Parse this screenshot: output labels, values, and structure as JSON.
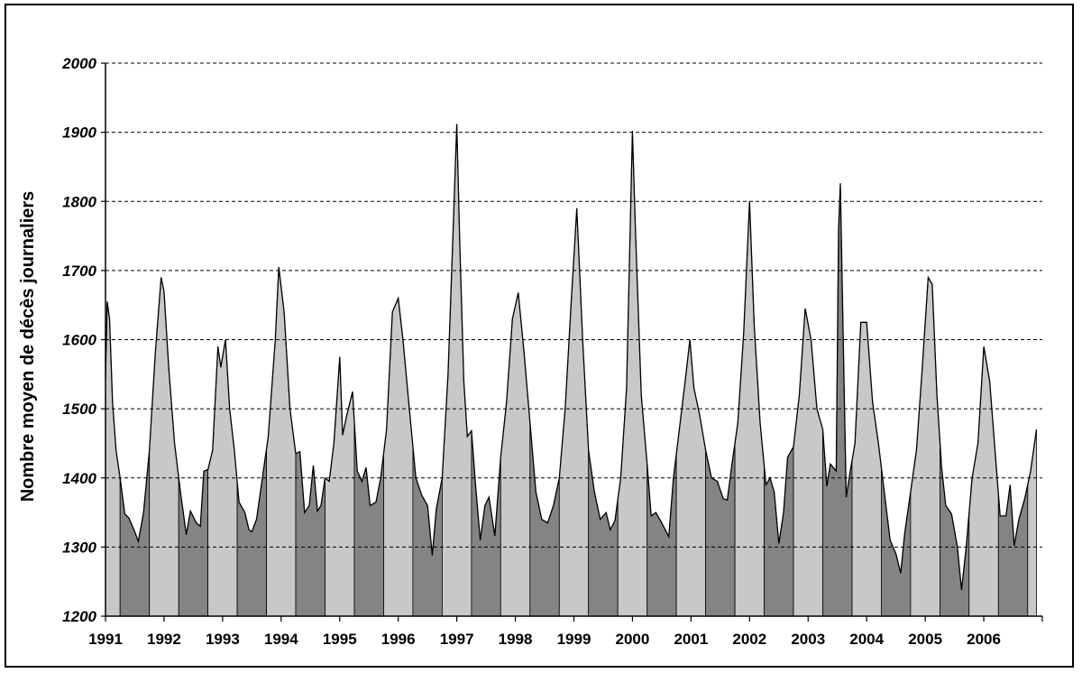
{
  "chart_data": {
    "type": "area",
    "title": "",
    "xlabel": "",
    "ylabel": "Nombre moyen de décès journaliers",
    "ylim": [
      1200,
      2000
    ],
    "yticks": [
      "2000",
      "1900",
      "1800",
      "1700",
      "1600",
      "1500",
      "1400",
      "1300",
      "1200"
    ],
    "grid": "horizontal dashed",
    "x_start_year": 1991,
    "x_end_year": 2007,
    "xticks": [
      "1991",
      "1992",
      "1993",
      "1994",
      "1995",
      "1996",
      "1997",
      "1998",
      "1999",
      "2000",
      "2001",
      "2002",
      "2003",
      "2004",
      "2005",
      "2006"
    ],
    "shading": {
      "winter_color": "#c8c8c8",
      "summer_color": "#848484",
      "line_color": "#000000"
    },
    "series": [
      {
        "points": [
          [
            1991.0,
            1545
          ],
          [
            1991.03,
            1655
          ],
          [
            1991.07,
            1630
          ],
          [
            1991.12,
            1510
          ],
          [
            1991.18,
            1440
          ],
          [
            1991.25,
            1400
          ],
          [
            1991.33,
            1348
          ],
          [
            1991.4,
            1342
          ],
          [
            1991.5,
            1322
          ],
          [
            1991.56,
            1308
          ],
          [
            1991.65,
            1350
          ],
          [
            1991.75,
            1440
          ],
          [
            1991.85,
            1580
          ],
          [
            1991.95,
            1690
          ],
          [
            1992.0,
            1670
          ],
          [
            1992.08,
            1560
          ],
          [
            1992.18,
            1450
          ],
          [
            1992.28,
            1380
          ],
          [
            1992.38,
            1318
          ],
          [
            1992.45,
            1352
          ],
          [
            1992.55,
            1335
          ],
          [
            1992.62,
            1330
          ],
          [
            1992.68,
            1410
          ],
          [
            1992.75,
            1412
          ],
          [
            1992.83,
            1440
          ],
          [
            1992.92,
            1590
          ],
          [
            1992.97,
            1560
          ],
          [
            1993.05,
            1600
          ],
          [
            1993.12,
            1500
          ],
          [
            1993.2,
            1440
          ],
          [
            1993.28,
            1365
          ],
          [
            1993.38,
            1350
          ],
          [
            1993.45,
            1325
          ],
          [
            1993.5,
            1322
          ],
          [
            1993.58,
            1340
          ],
          [
            1993.68,
            1400
          ],
          [
            1993.78,
            1460
          ],
          [
            1993.9,
            1600
          ],
          [
            1993.96,
            1705
          ],
          [
            1994.05,
            1640
          ],
          [
            1994.15,
            1500
          ],
          [
            1994.25,
            1435
          ],
          [
            1994.32,
            1438
          ],
          [
            1994.4,
            1350
          ],
          [
            1994.48,
            1360
          ],
          [
            1994.55,
            1418
          ],
          [
            1994.62,
            1352
          ],
          [
            1994.68,
            1360
          ],
          [
            1994.75,
            1400
          ],
          [
            1994.82,
            1395
          ],
          [
            1994.9,
            1450
          ],
          [
            1995.0,
            1575
          ],
          [
            1995.05,
            1462
          ],
          [
            1995.12,
            1490
          ],
          [
            1995.22,
            1525
          ],
          [
            1995.3,
            1410
          ],
          [
            1995.38,
            1395
          ],
          [
            1995.45,
            1415
          ],
          [
            1995.52,
            1360
          ],
          [
            1995.62,
            1365
          ],
          [
            1995.7,
            1400
          ],
          [
            1995.8,
            1470
          ],
          [
            1995.9,
            1640
          ],
          [
            1996.0,
            1660
          ],
          [
            1996.08,
            1600
          ],
          [
            1996.2,
            1490
          ],
          [
            1996.3,
            1400
          ],
          [
            1996.4,
            1375
          ],
          [
            1996.5,
            1360
          ],
          [
            1996.58,
            1288
          ],
          [
            1996.65,
            1355
          ],
          [
            1996.75,
            1400
          ],
          [
            1996.85,
            1550
          ],
          [
            1996.95,
            1790
          ],
          [
            1997.0,
            1912
          ],
          [
            1997.05,
            1740
          ],
          [
            1997.12,
            1540
          ],
          [
            1997.18,
            1460
          ],
          [
            1997.25,
            1468
          ],
          [
            1997.32,
            1390
          ],
          [
            1997.4,
            1310
          ],
          [
            1997.48,
            1360
          ],
          [
            1997.55,
            1372
          ],
          [
            1997.65,
            1316
          ],
          [
            1997.75,
            1430
          ],
          [
            1997.85,
            1510
          ],
          [
            1997.95,
            1630
          ],
          [
            1998.05,
            1668
          ],
          [
            1998.15,
            1580
          ],
          [
            1998.25,
            1480
          ],
          [
            1998.35,
            1380
          ],
          [
            1998.45,
            1340
          ],
          [
            1998.55,
            1335
          ],
          [
            1998.65,
            1360
          ],
          [
            1998.75,
            1400
          ],
          [
            1998.85,
            1500
          ],
          [
            1998.95,
            1650
          ],
          [
            1999.05,
            1790
          ],
          [
            1999.15,
            1600
          ],
          [
            1999.25,
            1440
          ],
          [
            1999.35,
            1380
          ],
          [
            1999.45,
            1340
          ],
          [
            1999.55,
            1350
          ],
          [
            1999.62,
            1325
          ],
          [
            1999.7,
            1338
          ],
          [
            1999.8,
            1400
          ],
          [
            1999.9,
            1530
          ],
          [
            2000.0,
            1902
          ],
          [
            2000.05,
            1760
          ],
          [
            2000.15,
            1520
          ],
          [
            2000.25,
            1420
          ],
          [
            2000.32,
            1345
          ],
          [
            2000.4,
            1350
          ],
          [
            2000.5,
            1335
          ],
          [
            2000.62,
            1315
          ],
          [
            2000.7,
            1400
          ],
          [
            2000.8,
            1470
          ],
          [
            2000.9,
            1540
          ],
          [
            2000.98,
            1600
          ],
          [
            2001.05,
            1530
          ],
          [
            2001.15,
            1490
          ],
          [
            2001.25,
            1440
          ],
          [
            2001.35,
            1400
          ],
          [
            2001.45,
            1395
          ],
          [
            2001.55,
            1370
          ],
          [
            2001.62,
            1368
          ],
          [
            2001.7,
            1420
          ],
          [
            2001.8,
            1480
          ],
          [
            2001.9,
            1610
          ],
          [
            2002.0,
            1800
          ],
          [
            2002.08,
            1620
          ],
          [
            2002.18,
            1480
          ],
          [
            2002.28,
            1390
          ],
          [
            2002.35,
            1400
          ],
          [
            2002.42,
            1380
          ],
          [
            2002.5,
            1305
          ],
          [
            2002.58,
            1350
          ],
          [
            2002.65,
            1430
          ],
          [
            2002.75,
            1445
          ],
          [
            2002.85,
            1520
          ],
          [
            2002.95,
            1645
          ],
          [
            2003.05,
            1600
          ],
          [
            2003.15,
            1500
          ],
          [
            2003.25,
            1470
          ],
          [
            2003.32,
            1388
          ],
          [
            2003.38,
            1420
          ],
          [
            2003.48,
            1410
          ],
          [
            2003.52,
            1760
          ],
          [
            2003.55,
            1826
          ],
          [
            2003.6,
            1600
          ],
          [
            2003.65,
            1372
          ],
          [
            2003.72,
            1410
          ],
          [
            2003.8,
            1450
          ],
          [
            2003.9,
            1625
          ],
          [
            2004.0,
            1625
          ],
          [
            2004.1,
            1510
          ],
          [
            2004.2,
            1450
          ],
          [
            2004.3,
            1380
          ],
          [
            2004.4,
            1310
          ],
          [
            2004.5,
            1290
          ],
          [
            2004.58,
            1262
          ],
          [
            2004.65,
            1320
          ],
          [
            2004.75,
            1380
          ],
          [
            2004.85,
            1440
          ],
          [
            2004.95,
            1560
          ],
          [
            2005.05,
            1690
          ],
          [
            2005.12,
            1680
          ],
          [
            2005.2,
            1520
          ],
          [
            2005.28,
            1415
          ],
          [
            2005.35,
            1360
          ],
          [
            2005.45,
            1348
          ],
          [
            2005.55,
            1300
          ],
          [
            2005.62,
            1238
          ],
          [
            2005.7,
            1300
          ],
          [
            2005.8,
            1400
          ],
          [
            2005.9,
            1450
          ],
          [
            2006.0,
            1590
          ],
          [
            2006.1,
            1540
          ],
          [
            2006.2,
            1430
          ],
          [
            2006.28,
            1345
          ],
          [
            2006.38,
            1345
          ],
          [
            2006.45,
            1390
          ],
          [
            2006.52,
            1302
          ],
          [
            2006.6,
            1340
          ],
          [
            2006.7,
            1370
          ],
          [
            2006.8,
            1410
          ],
          [
            2006.9,
            1470
          ]
        ]
      }
    ]
  }
}
